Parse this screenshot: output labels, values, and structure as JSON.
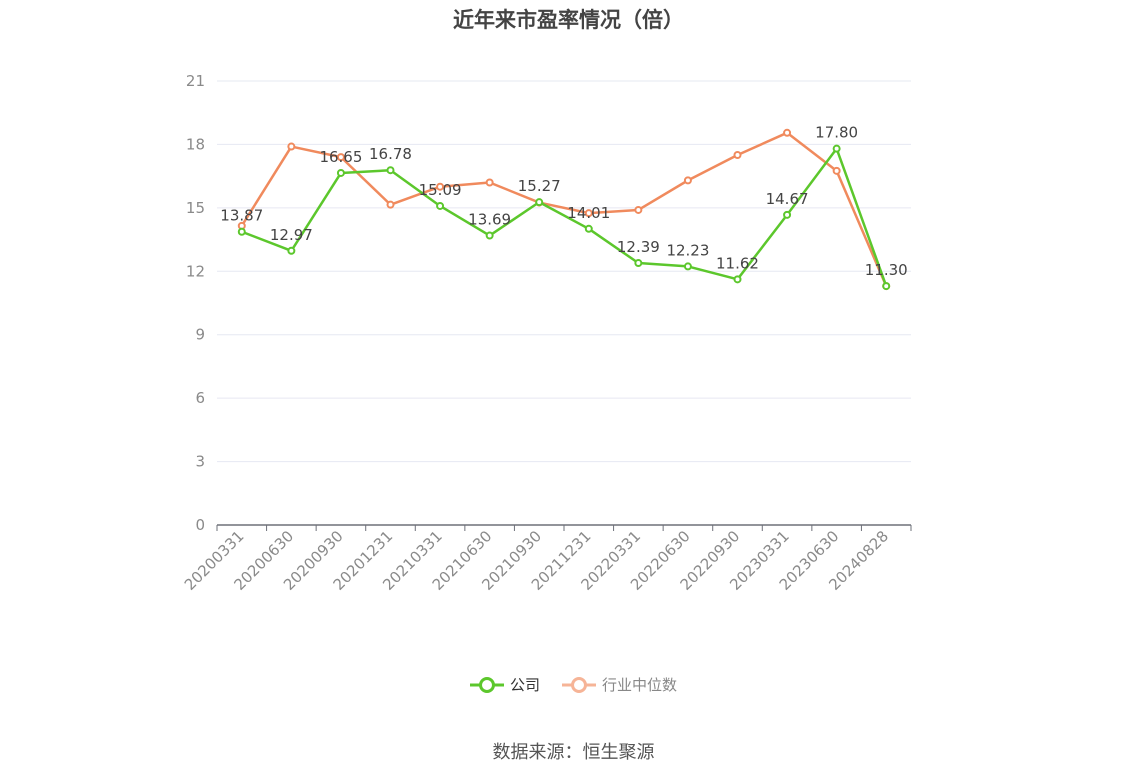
{
  "title": "近年来市盈率情况（倍）",
  "source": "数据来源：恒生聚源",
  "colors": {
    "company": "#5cc72c",
    "industry": "#f08a5d",
    "industry_legend": "#f6b497",
    "grid": "#e6e8f2",
    "axis": "#6e7079",
    "tick_text": "#8a8a8a"
  },
  "chart_data": {
    "type": "line",
    "title": "近年来市盈率情况（倍）",
    "xlabel": "",
    "ylabel": "",
    "categories": [
      "20200331",
      "20200630",
      "20200930",
      "20201231",
      "20210331",
      "20210630",
      "20210930",
      "20211231",
      "20220331",
      "20220630",
      "20220930",
      "20230331",
      "20230630",
      "20240828"
    ],
    "ylim": [
      0,
      21
    ],
    "yticks": [
      0,
      3,
      6,
      9,
      12,
      15,
      18,
      21
    ],
    "grid": true,
    "legend_position": "bottom",
    "series": [
      {
        "name": "公司",
        "color": "#5cc72c",
        "show_labels": true,
        "values": [
          13.87,
          12.97,
          16.65,
          16.78,
          15.09,
          13.69,
          15.27,
          14.01,
          12.39,
          12.23,
          11.62,
          14.67,
          17.8,
          11.3
        ]
      },
      {
        "name": "行业中位数",
        "color": "#f08a5d",
        "show_labels": false,
        "values": [
          14.15,
          17.9,
          17.4,
          15.15,
          16.0,
          16.2,
          15.25,
          14.75,
          14.9,
          16.3,
          17.5,
          18.55,
          16.75,
          11.3
        ]
      }
    ]
  }
}
